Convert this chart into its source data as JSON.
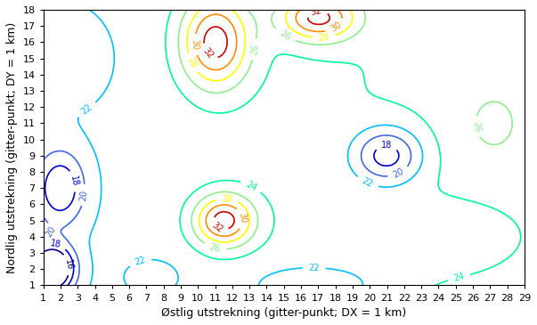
{
  "x_min": 1,
  "x_max": 29,
  "y_min": 1,
  "y_max": 18,
  "levels": [
    16,
    18,
    20,
    22,
    24,
    26,
    28,
    30,
    32
  ],
  "colors": [
    "#00008B",
    "#0000CD",
    "#4169E1",
    "#00BFFF",
    "#00FA9A",
    "#90EE90",
    "#FFFF00",
    "#FF8C00",
    "#CC0000"
  ],
  "xlabel": "Østlig utstrekning (gitter-punkt; DX = 1 km)",
  "ylabel": "Nordlig utstrekning (gitter-punkt; DY = 1 km)",
  "x_ticks": [
    1,
    2,
    3,
    4,
    5,
    6,
    7,
    8,
    9,
    10,
    11,
    12,
    13,
    14,
    15,
    16,
    17,
    18,
    19,
    20,
    21,
    22,
    23,
    24,
    25,
    26,
    27,
    28,
    29
  ],
  "y_ticks": [
    1,
    2,
    3,
    4,
    5,
    6,
    7,
    8,
    9,
    10,
    11,
    12,
    13,
    14,
    15,
    16,
    17,
    18
  ],
  "fontsize_labels": 9,
  "fontsize_ticks": 8,
  "fontsize_clabel": 7,
  "linewidth": 1.2
}
